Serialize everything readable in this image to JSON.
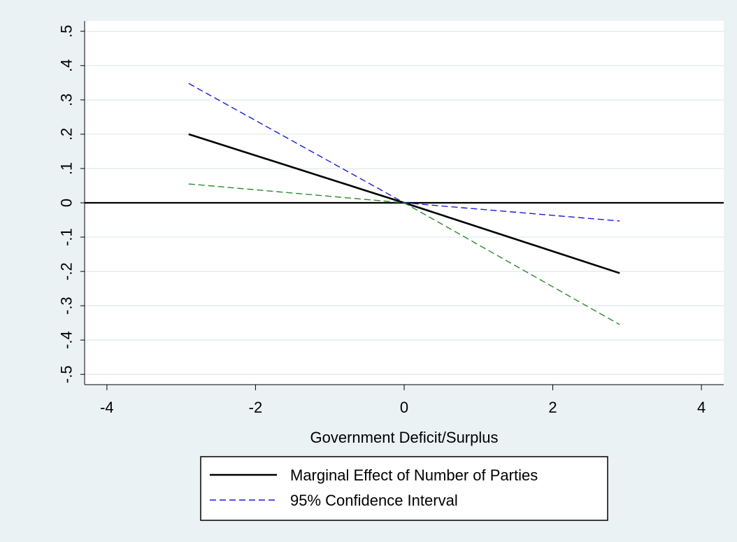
{
  "chart_data": {
    "type": "line",
    "xlabel": "Government Deficit/Surplus",
    "ylabel": "",
    "xlim": [
      -4.3,
      4.3
    ],
    "ylim": [
      -0.53,
      0.53
    ],
    "x_ticks": [
      -4,
      -2,
      0,
      2,
      4
    ],
    "x_tick_labels": [
      "-4",
      "-2",
      "0",
      "2",
      "4"
    ],
    "y_ticks": [
      -0.5,
      -0.4,
      -0.3,
      -0.2,
      -0.1,
      0,
      0.1,
      0.2,
      0.3,
      0.4,
      0.5
    ],
    "y_tick_labels": [
      "-.5",
      "-.4",
      "-.3",
      "-.2",
      "-.1",
      "0",
      ".1",
      ".2",
      ".3",
      ".4",
      ".5"
    ],
    "grid": true,
    "reference_line_y": 0,
    "series": [
      {
        "name": "Marginal Effect of Number of Parties",
        "color": "#000000",
        "dash": "solid",
        "x": [
          -2.9,
          0,
          2.9
        ],
        "y": [
          0.2,
          0,
          -0.205
        ]
      },
      {
        "name": "95% Confidence Interval",
        "color": "#1a1adb",
        "dash": "dashed",
        "x": [
          -2.9,
          0,
          2.9
        ],
        "y": [
          0.348,
          0,
          -0.053
        ]
      },
      {
        "name": "",
        "color": "#2a8a2a",
        "dash": "dashed",
        "x": [
          -2.9,
          0,
          2.9
        ],
        "y": [
          0.055,
          0,
          -0.355
        ]
      }
    ],
    "legend": {
      "placement": "bottom",
      "entries": [
        {
          "label": "Marginal Effect of Number of Parties",
          "color": "#000000",
          "dash": "solid"
        },
        {
          "label": "95% Confidence Interval",
          "color": "#1a1adb",
          "dash": "dashed"
        }
      ]
    }
  }
}
